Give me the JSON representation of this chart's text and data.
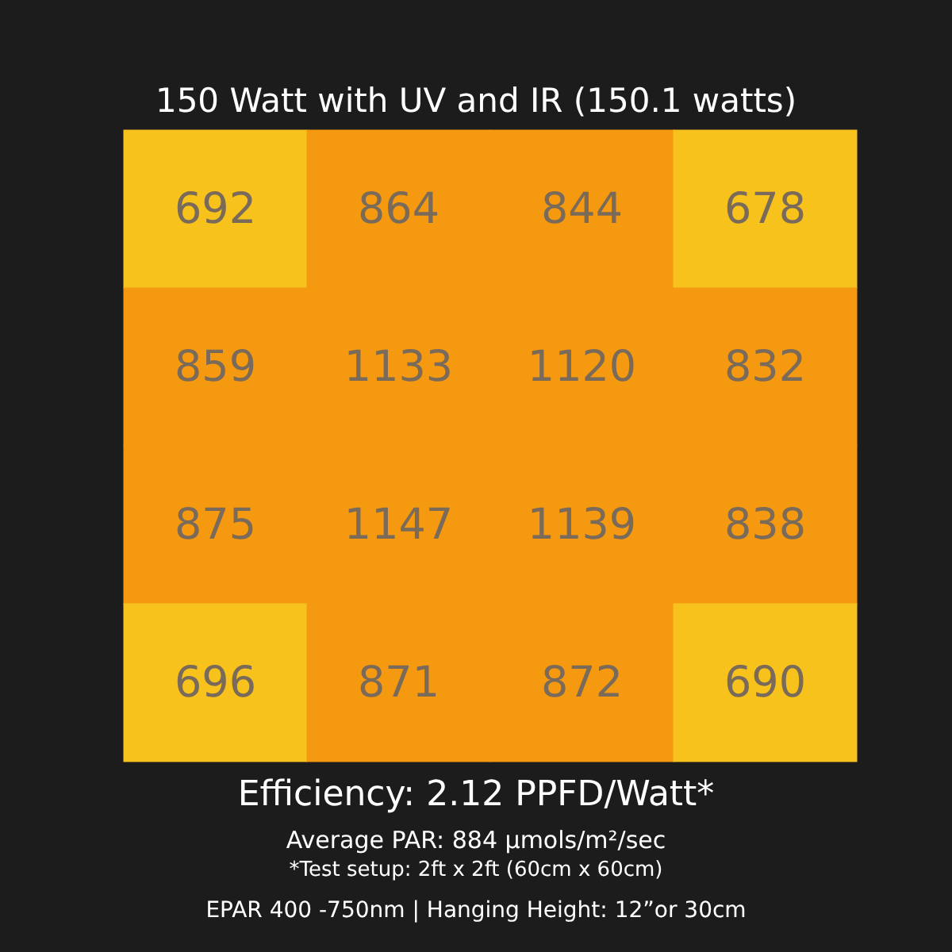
{
  "chart_data": {
    "type": "heatmap",
    "title": "150 Watt with UV and IR (150.1 watts)",
    "categories": [
      null,
      null,
      null,
      null
    ],
    "y_categories": [
      null,
      null,
      null,
      null
    ],
    "cells": [
      [
        692,
        864,
        844,
        678
      ],
      [
        859,
        1133,
        1120,
        832
      ],
      [
        875,
        1147,
        1139,
        838
      ],
      [
        696,
        871,
        872,
        690
      ]
    ],
    "colors": [
      [
        "#f8c21c",
        "#f59a10",
        "#f59a10",
        "#f8c21c"
      ],
      [
        "#f59a10",
        "#f59a10",
        "#f59a10",
        "#f59a10"
      ],
      [
        "#f59a10",
        "#f59a10",
        "#f59a10",
        "#f59a10"
      ],
      [
        "#f8c21c",
        "#f59a10",
        "#f59a10",
        "#f8c21c"
      ]
    ],
    "data_labels": true,
    "annotations": [
      "Efficiency: 2.12 PPFD/Watt*",
      "Average PAR: 884 μmols/m²/sec",
      "*Test setup: 2ft x 2ft (60cm x 60cm)",
      "EPAR 400 -750nm | Hanging Height: 12”or 30cm"
    ]
  }
}
